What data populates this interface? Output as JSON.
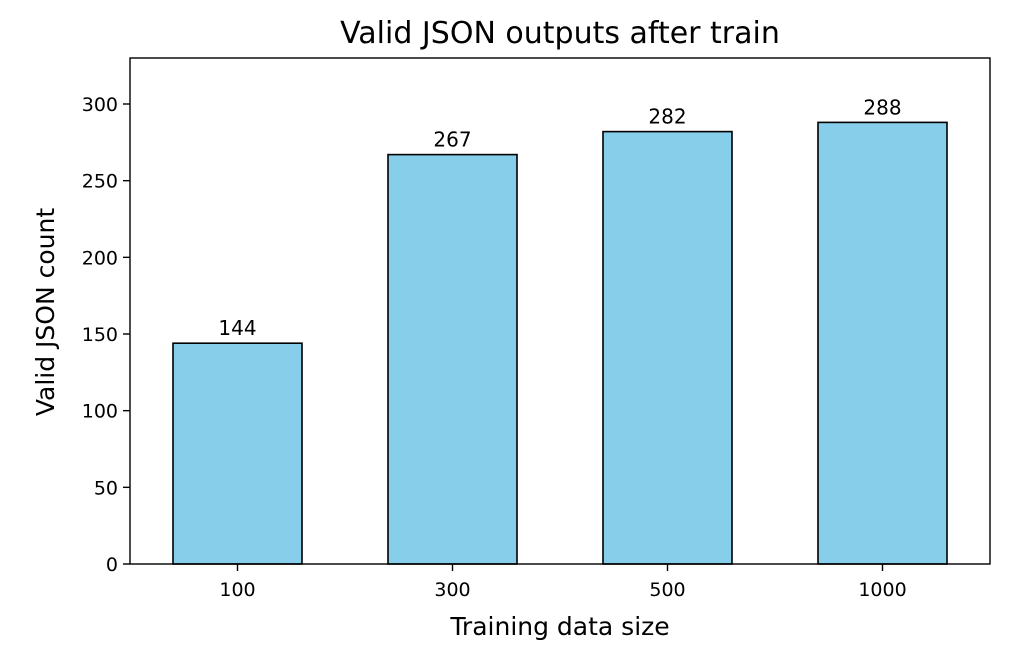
{
  "chart_data": {
    "type": "bar",
    "title": "Valid JSON outputs after train",
    "xlabel": "Training data size",
    "ylabel": "Valid JSON count",
    "categories": [
      "100",
      "300",
      "500",
      "1000"
    ],
    "values": [
      144,
      267,
      282,
      288
    ],
    "ylim": [
      0,
      330
    ],
    "yticks": [
      0,
      50,
      100,
      150,
      200,
      250,
      300
    ],
    "grid": false,
    "bar_color": "#87ceeb",
    "edge_color": "#000000",
    "data_labels": true
  }
}
